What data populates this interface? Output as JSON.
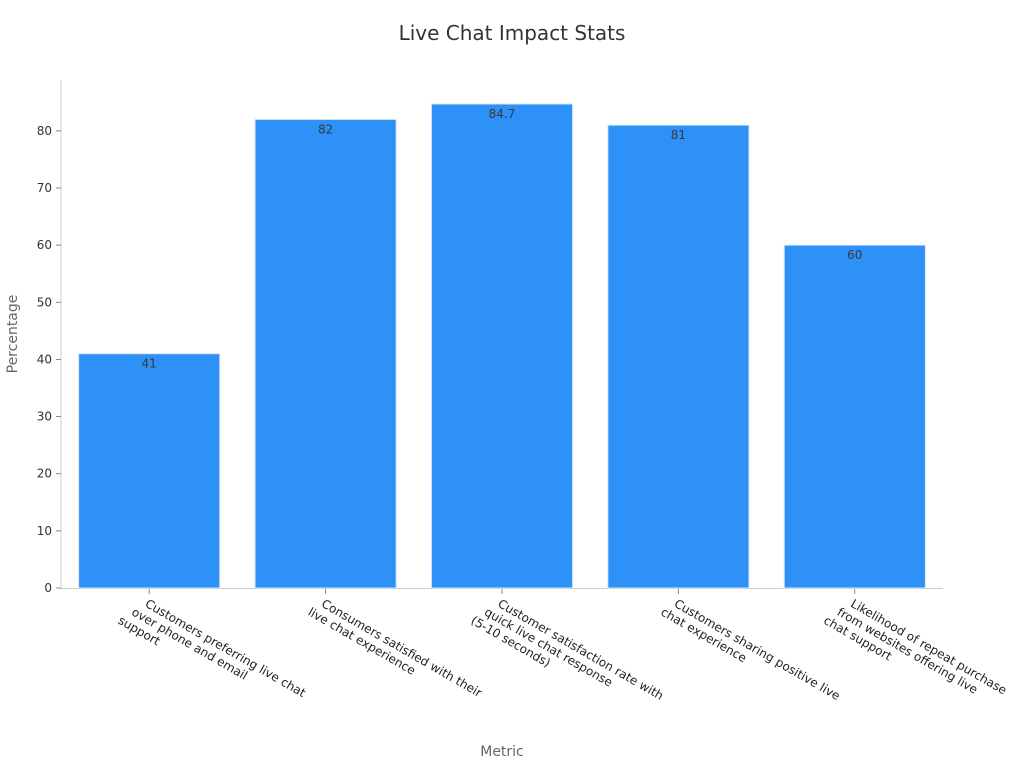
{
  "chart_data": {
    "type": "bar",
    "title": "Live Chat Impact Stats",
    "xlabel": "Metric",
    "ylabel": "Percentage",
    "ylim": [
      0,
      88.9
    ],
    "yticks": [
      0,
      10,
      20,
      30,
      40,
      50,
      60,
      70,
      80
    ],
    "grid": false,
    "categories": [
      [
        "Customers preferring live chat",
        "over phone and email",
        "support"
      ],
      [
        "Consumers satisfied with their",
        "live chat experience"
      ],
      [
        "Customer satisfaction rate with",
        "quick live chat response",
        "(5-10 seconds)"
      ],
      [
        "Customers sharing positive live",
        "chat experience"
      ],
      [
        "Likelihood of repeat purchase",
        "from websites offering live",
        "chat support"
      ]
    ],
    "values": [
      41,
      82,
      84.7,
      81,
      60
    ],
    "value_labels": [
      "41",
      "82",
      "84.7",
      "81",
      "60"
    ],
    "colors": {
      "bar": "#2d91f7",
      "bar_edge": "#d7e6f7",
      "axis": "#cccccc"
    }
  }
}
